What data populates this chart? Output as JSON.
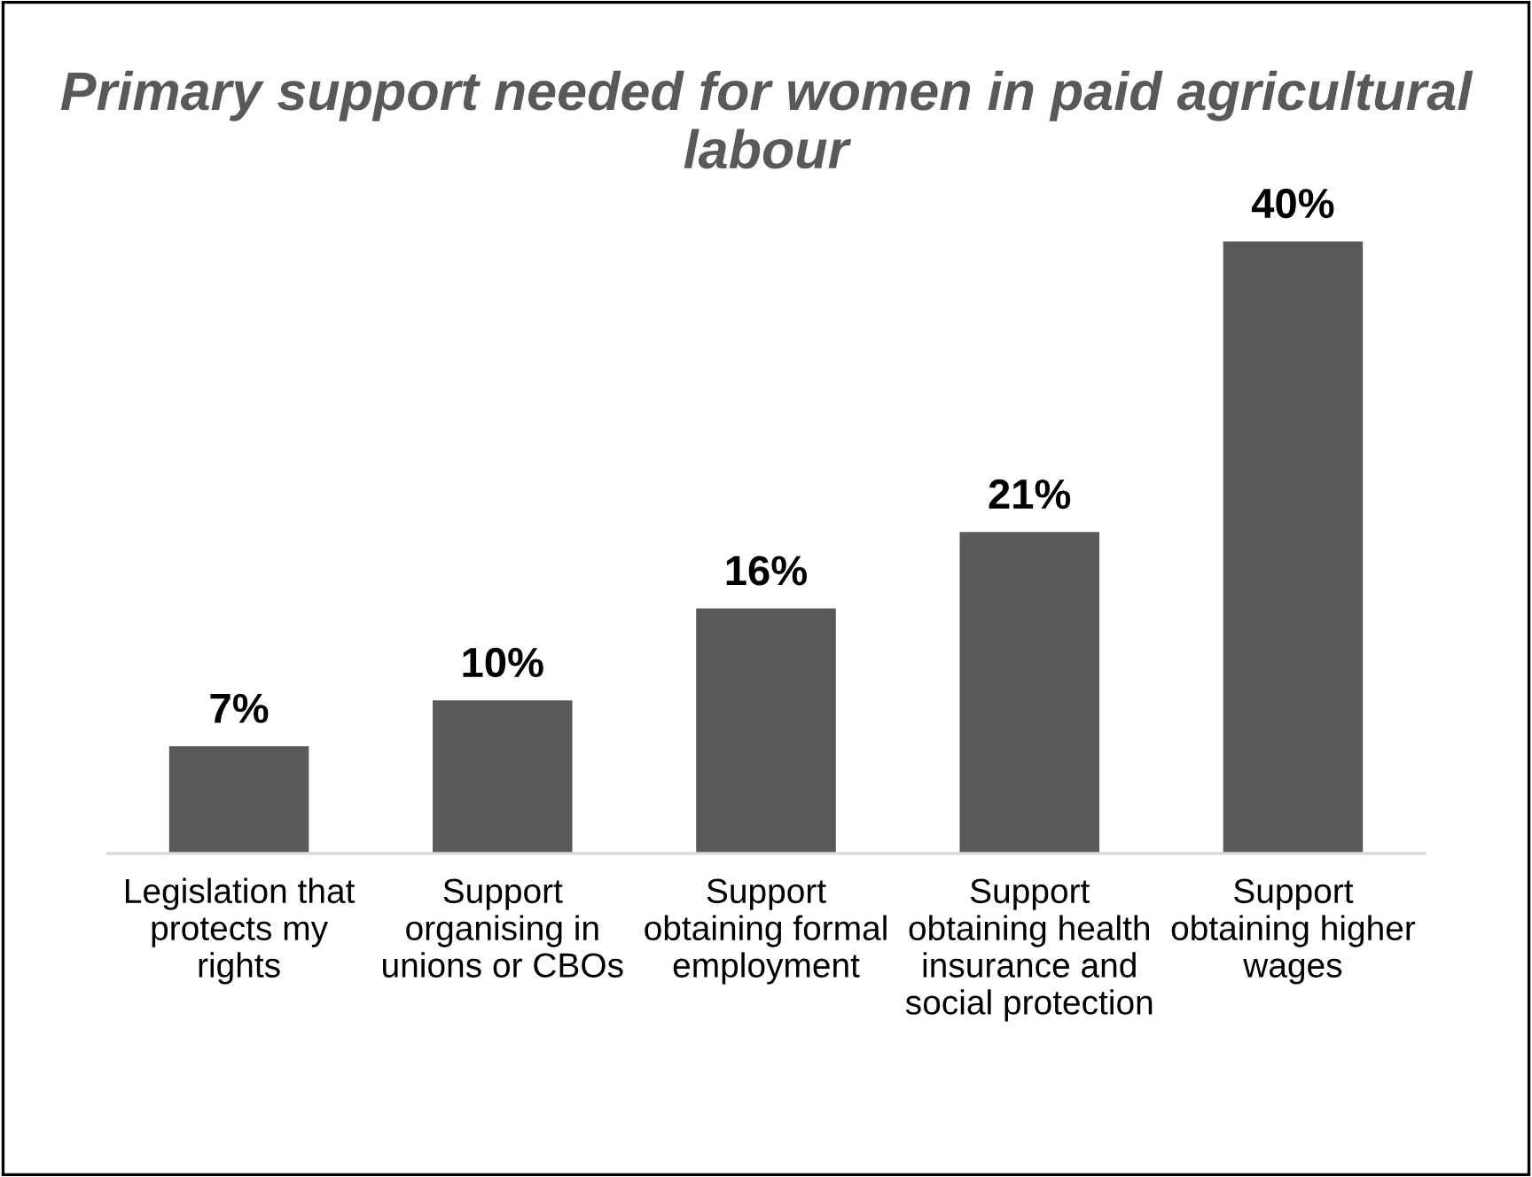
{
  "chart_data": {
    "type": "bar",
    "title": "Primary support needed for women in paid agricultural labour",
    "categories": [
      "Legislation that\nprotects my\nrights",
      "Support\norganising in\nunions or CBOs",
      "Support\nobtaining formal\nemployment",
      "Support\nobtaining health\ninsurance and\nsocial protection",
      "Support\nobtaining higher\nwages"
    ],
    "values": [
      7,
      10,
      16,
      21,
      40
    ],
    "value_labels": [
      "7%",
      "10%",
      "16%",
      "21%",
      "40%"
    ],
    "color": "#595959"
  }
}
